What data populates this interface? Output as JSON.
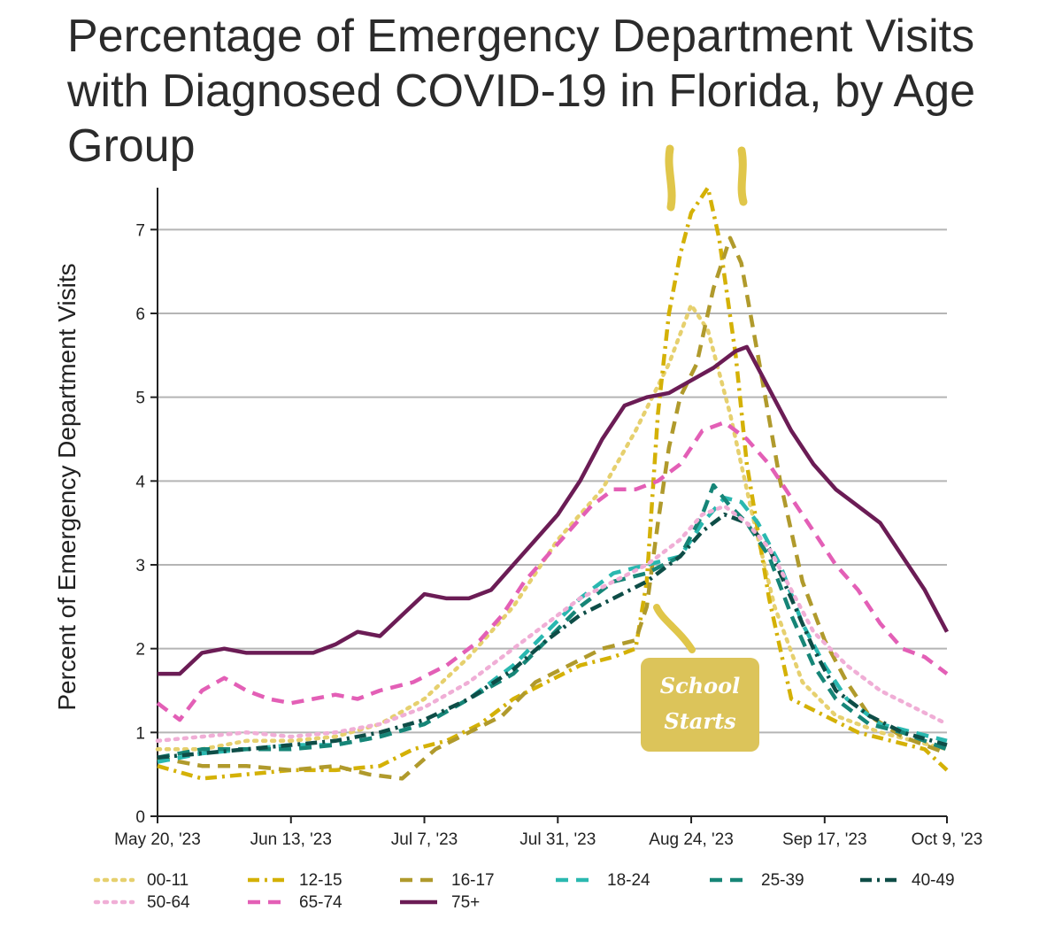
{
  "chart_data": {
    "type": "line",
    "title": "Percentage of Emergency Department Visits with Diagnosed COVID-19 in Florida, by Age Group",
    "ylabel": "Percent of Emergency Department Visits",
    "xlabel": "",
    "ylim": [
      0,
      7.5
    ],
    "y_ticks": [
      0,
      1,
      2,
      3,
      4,
      5,
      6,
      7
    ],
    "x_ticks": [
      {
        "day": 0,
        "label": "May 20, '23"
      },
      {
        "day": 24,
        "label": "Jun 13, '23"
      },
      {
        "day": 48,
        "label": "Jul 7, '23"
      },
      {
        "day": 72,
        "label": "Jul 31, '23"
      },
      {
        "day": 96,
        "label": "Aug 24, '23"
      },
      {
        "day": 120,
        "label": "Sep 17, '23"
      },
      {
        "day": 142,
        "label": "Oct 9, '23"
      }
    ],
    "x_unit": "days since May 20, '23",
    "grid": true,
    "series": [
      {
        "name": "00-11",
        "color": "#e6d06e",
        "dash": "dot",
        "points": [
          [
            0,
            0.8
          ],
          [
            8,
            0.8
          ],
          [
            16,
            0.9
          ],
          [
            24,
            0.9
          ],
          [
            32,
            0.95
          ],
          [
            40,
            1.1
          ],
          [
            48,
            1.4
          ],
          [
            56,
            1.9
          ],
          [
            64,
            2.5
          ],
          [
            72,
            3.3
          ],
          [
            80,
            3.9
          ],
          [
            86,
            4.6
          ],
          [
            92,
            5.4
          ],
          [
            96,
            6.1
          ],
          [
            99,
            5.8
          ],
          [
            103,
            4.8
          ],
          [
            107,
            3.6
          ],
          [
            111,
            2.5
          ],
          [
            116,
            1.6
          ],
          [
            122,
            1.2
          ],
          [
            130,
            1.0
          ],
          [
            136,
            0.9
          ],
          [
            142,
            0.8
          ]
        ]
      },
      {
        "name": "12-15",
        "color": "#d4b106",
        "dash": "dashdot",
        "points": [
          [
            0,
            0.6
          ],
          [
            8,
            0.45
          ],
          [
            16,
            0.5
          ],
          [
            24,
            0.55
          ],
          [
            32,
            0.55
          ],
          [
            40,
            0.6
          ],
          [
            46,
            0.8
          ],
          [
            52,
            0.9
          ],
          [
            58,
            1.1
          ],
          [
            64,
            1.4
          ],
          [
            70,
            1.6
          ],
          [
            76,
            1.8
          ],
          [
            82,
            1.9
          ],
          [
            86,
            2.0
          ],
          [
            88,
            2.8
          ],
          [
            90,
            4.8
          ],
          [
            92,
            6.0
          ],
          [
            94,
            6.7
          ],
          [
            96,
            7.2
          ],
          [
            99,
            7.5
          ],
          [
            101,
            6.9
          ],
          [
            104,
            5.5
          ],
          [
            106,
            4.2
          ],
          [
            110,
            2.6
          ],
          [
            114,
            1.4
          ],
          [
            120,
            1.2
          ],
          [
            126,
            1.0
          ],
          [
            132,
            0.9
          ],
          [
            138,
            0.8
          ],
          [
            142,
            0.55
          ]
        ]
      },
      {
        "name": "16-17",
        "color": "#b09a2c",
        "dash": "dash",
        "points": [
          [
            0,
            0.7
          ],
          [
            8,
            0.6
          ],
          [
            16,
            0.6
          ],
          [
            24,
            0.55
          ],
          [
            32,
            0.6
          ],
          [
            38,
            0.5
          ],
          [
            44,
            0.45
          ],
          [
            50,
            0.8
          ],
          [
            56,
            1.0
          ],
          [
            62,
            1.2
          ],
          [
            68,
            1.6
          ],
          [
            74,
            1.8
          ],
          [
            80,
            2.0
          ],
          [
            86,
            2.1
          ],
          [
            88,
            2.5
          ],
          [
            90,
            3.5
          ],
          [
            92,
            4.4
          ],
          [
            94,
            5.0
          ],
          [
            97,
            5.4
          ],
          [
            100,
            6.3
          ],
          [
            103,
            6.9
          ],
          [
            105,
            6.6
          ],
          [
            108,
            5.5
          ],
          [
            112,
            4.0
          ],
          [
            116,
            2.8
          ],
          [
            120,
            2.1
          ],
          [
            124,
            1.6
          ],
          [
            128,
            1.2
          ],
          [
            134,
            0.95
          ],
          [
            140,
            0.8
          ],
          [
            142,
            0.75
          ]
        ]
      },
      {
        "name": "18-24",
        "color": "#2ab8b0",
        "dash": "dash",
        "points": [
          [
            0,
            0.65
          ],
          [
            8,
            0.75
          ],
          [
            16,
            0.8
          ],
          [
            24,
            0.85
          ],
          [
            32,
            0.85
          ],
          [
            40,
            0.95
          ],
          [
            48,
            1.1
          ],
          [
            56,
            1.4
          ],
          [
            64,
            1.8
          ],
          [
            70,
            2.2
          ],
          [
            76,
            2.6
          ],
          [
            82,
            2.9
          ],
          [
            88,
            3.0
          ],
          [
            94,
            3.1
          ],
          [
            98,
            3.5
          ],
          [
            102,
            3.8
          ],
          [
            105,
            3.75
          ],
          [
            108,
            3.5
          ],
          [
            112,
            3.0
          ],
          [
            116,
            2.3
          ],
          [
            120,
            1.8
          ],
          [
            124,
            1.4
          ],
          [
            130,
            1.1
          ],
          [
            136,
            1.0
          ],
          [
            142,
            0.9
          ]
        ]
      },
      {
        "name": "25-39",
        "color": "#168577",
        "dash": "dash",
        "points": [
          [
            0,
            0.7
          ],
          [
            8,
            0.8
          ],
          [
            16,
            0.8
          ],
          [
            24,
            0.8
          ],
          [
            32,
            0.85
          ],
          [
            40,
            0.95
          ],
          [
            48,
            1.1
          ],
          [
            56,
            1.4
          ],
          [
            64,
            1.7
          ],
          [
            70,
            2.1
          ],
          [
            76,
            2.5
          ],
          [
            82,
            2.8
          ],
          [
            88,
            2.9
          ],
          [
            94,
            3.1
          ],
          [
            98,
            3.6
          ],
          [
            100,
            3.95
          ],
          [
            103,
            3.7
          ],
          [
            106,
            3.5
          ],
          [
            110,
            3.1
          ],
          [
            114,
            2.4
          ],
          [
            118,
            1.8
          ],
          [
            122,
            1.4
          ],
          [
            128,
            1.1
          ],
          [
            134,
            1.0
          ],
          [
            142,
            0.8
          ]
        ]
      },
      {
        "name": "40-49",
        "color": "#0e4d47",
        "dash": "dashdot",
        "points": [
          [
            0,
            0.7
          ],
          [
            8,
            0.75
          ],
          [
            16,
            0.8
          ],
          [
            24,
            0.85
          ],
          [
            32,
            0.9
          ],
          [
            40,
            1.0
          ],
          [
            48,
            1.15
          ],
          [
            56,
            1.4
          ],
          [
            64,
            1.75
          ],
          [
            70,
            2.1
          ],
          [
            76,
            2.4
          ],
          [
            82,
            2.6
          ],
          [
            88,
            2.8
          ],
          [
            94,
            3.1
          ],
          [
            98,
            3.4
          ],
          [
            102,
            3.6
          ],
          [
            106,
            3.5
          ],
          [
            110,
            3.2
          ],
          [
            114,
            2.6
          ],
          [
            118,
            2.0
          ],
          [
            122,
            1.5
          ],
          [
            128,
            1.2
          ],
          [
            134,
            1.0
          ],
          [
            142,
            0.85
          ]
        ]
      },
      {
        "name": "50-64",
        "color": "#f0aed6",
        "dash": "dot",
        "points": [
          [
            0,
            0.9
          ],
          [
            8,
            0.95
          ],
          [
            16,
            1.0
          ],
          [
            24,
            0.95
          ],
          [
            32,
            1.0
          ],
          [
            40,
            1.1
          ],
          [
            48,
            1.3
          ],
          [
            56,
            1.6
          ],
          [
            64,
            2.0
          ],
          [
            70,
            2.3
          ],
          [
            76,
            2.6
          ],
          [
            82,
            2.8
          ],
          [
            88,
            3.0
          ],
          [
            94,
            3.3
          ],
          [
            98,
            3.6
          ],
          [
            102,
            3.7
          ],
          [
            106,
            3.5
          ],
          [
            110,
            3.2
          ],
          [
            114,
            2.7
          ],
          [
            118,
            2.2
          ],
          [
            124,
            1.8
          ],
          [
            130,
            1.5
          ],
          [
            136,
            1.3
          ],
          [
            142,
            1.1
          ]
        ]
      },
      {
        "name": "65-74",
        "color": "#e35fb6",
        "dash": "dash",
        "points": [
          [
            0,
            1.35
          ],
          [
            4,
            1.15
          ],
          [
            8,
            1.5
          ],
          [
            12,
            1.65
          ],
          [
            16,
            1.5
          ],
          [
            20,
            1.4
          ],
          [
            24,
            1.35
          ],
          [
            28,
            1.4
          ],
          [
            32,
            1.45
          ],
          [
            36,
            1.4
          ],
          [
            40,
            1.5
          ],
          [
            46,
            1.6
          ],
          [
            52,
            1.8
          ],
          [
            58,
            2.1
          ],
          [
            62,
            2.4
          ],
          [
            66,
            2.8
          ],
          [
            70,
            3.1
          ],
          [
            74,
            3.4
          ],
          [
            78,
            3.7
          ],
          [
            82,
            3.9
          ],
          [
            86,
            3.9
          ],
          [
            90,
            4.0
          ],
          [
            94,
            4.2
          ],
          [
            98,
            4.6
          ],
          [
            102,
            4.7
          ],
          [
            106,
            4.5
          ],
          [
            110,
            4.2
          ],
          [
            114,
            3.8
          ],
          [
            118,
            3.4
          ],
          [
            122,
            3.0
          ],
          [
            126,
            2.7
          ],
          [
            130,
            2.3
          ],
          [
            134,
            2.0
          ],
          [
            138,
            1.9
          ],
          [
            142,
            1.7
          ]
        ]
      },
      {
        "name": "75+",
        "color": "#6b1c55",
        "dash": "solid",
        "points": [
          [
            0,
            1.7
          ],
          [
            4,
            1.7
          ],
          [
            8,
            1.95
          ],
          [
            12,
            2.0
          ],
          [
            16,
            1.95
          ],
          [
            20,
            1.95
          ],
          [
            24,
            1.95
          ],
          [
            28,
            1.95
          ],
          [
            32,
            2.05
          ],
          [
            36,
            2.2
          ],
          [
            40,
            2.15
          ],
          [
            44,
            2.4
          ],
          [
            48,
            2.65
          ],
          [
            52,
            2.6
          ],
          [
            56,
            2.6
          ],
          [
            60,
            2.7
          ],
          [
            64,
            3.0
          ],
          [
            68,
            3.3
          ],
          [
            72,
            3.6
          ],
          [
            76,
            4.0
          ],
          [
            80,
            4.5
          ],
          [
            84,
            4.9
          ],
          [
            88,
            5.0
          ],
          [
            92,
            5.05
          ],
          [
            96,
            5.2
          ],
          [
            100,
            5.35
          ],
          [
            104,
            5.55
          ],
          [
            106,
            5.6
          ],
          [
            110,
            5.1
          ],
          [
            114,
            4.6
          ],
          [
            118,
            4.2
          ],
          [
            122,
            3.9
          ],
          [
            126,
            3.7
          ],
          [
            130,
            3.5
          ],
          [
            134,
            3.1
          ],
          [
            138,
            2.7
          ],
          [
            142,
            2.2
          ]
        ]
      }
    ],
    "annotations": [
      {
        "text": "School Starts",
        "line1": "School",
        "line2": "Starts"
      }
    ]
  }
}
